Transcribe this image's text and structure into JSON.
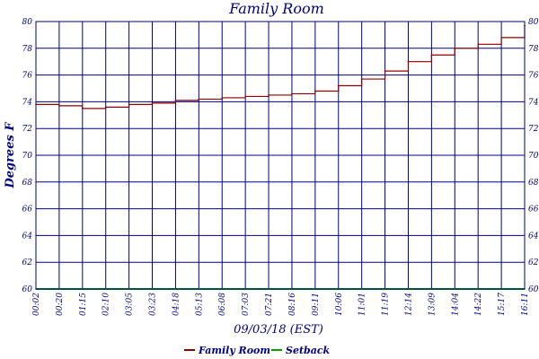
{
  "chart_data": {
    "type": "line",
    "title": "Family Room",
    "ylabel": "Degrees F",
    "xlabel": "09/03/18 (EST)",
    "ylim": [
      60,
      80
    ],
    "y_ticks": [
      "60",
      "62",
      "64",
      "66",
      "68",
      "70",
      "72",
      "74",
      "76",
      "78",
      "80"
    ],
    "x_ticks": [
      "00:02",
      "00:20",
      "01:15",
      "02:10",
      "03:05",
      "03:23",
      "04:18",
      "05:13",
      "06:08",
      "07:03",
      "07:21",
      "08:16",
      "09:11",
      "10:06",
      "11:01",
      "11:19",
      "12:14",
      "13:09",
      "14:04",
      "14:22",
      "15:17",
      "16:11"
    ],
    "grid": true,
    "legend_position": "bottom",
    "series": [
      {
        "name": "Family Room",
        "color": "#8b0000",
        "x": [
          "00:02",
          "00:20",
          "01:15",
          "02:10",
          "03:05",
          "03:23",
          "04:18",
          "05:13",
          "06:08",
          "07:03",
          "07:21",
          "08:16",
          "09:11",
          "10:06",
          "11:01",
          "11:19",
          "12:14",
          "13:09",
          "14:04",
          "14:22",
          "15:17",
          "16:11"
        ],
        "values": [
          73.8,
          73.7,
          73.5,
          73.6,
          73.8,
          73.9,
          74.1,
          74.2,
          74.3,
          74.4,
          74.5,
          74.6,
          74.8,
          75.2,
          75.7,
          76.3,
          77.0,
          77.5,
          78.0,
          78.3,
          78.8,
          79.7
        ]
      },
      {
        "name": "Setback",
        "color": "#00a000",
        "x": [
          "00:02",
          "16:11"
        ],
        "values": [
          60,
          60
        ]
      }
    ]
  }
}
